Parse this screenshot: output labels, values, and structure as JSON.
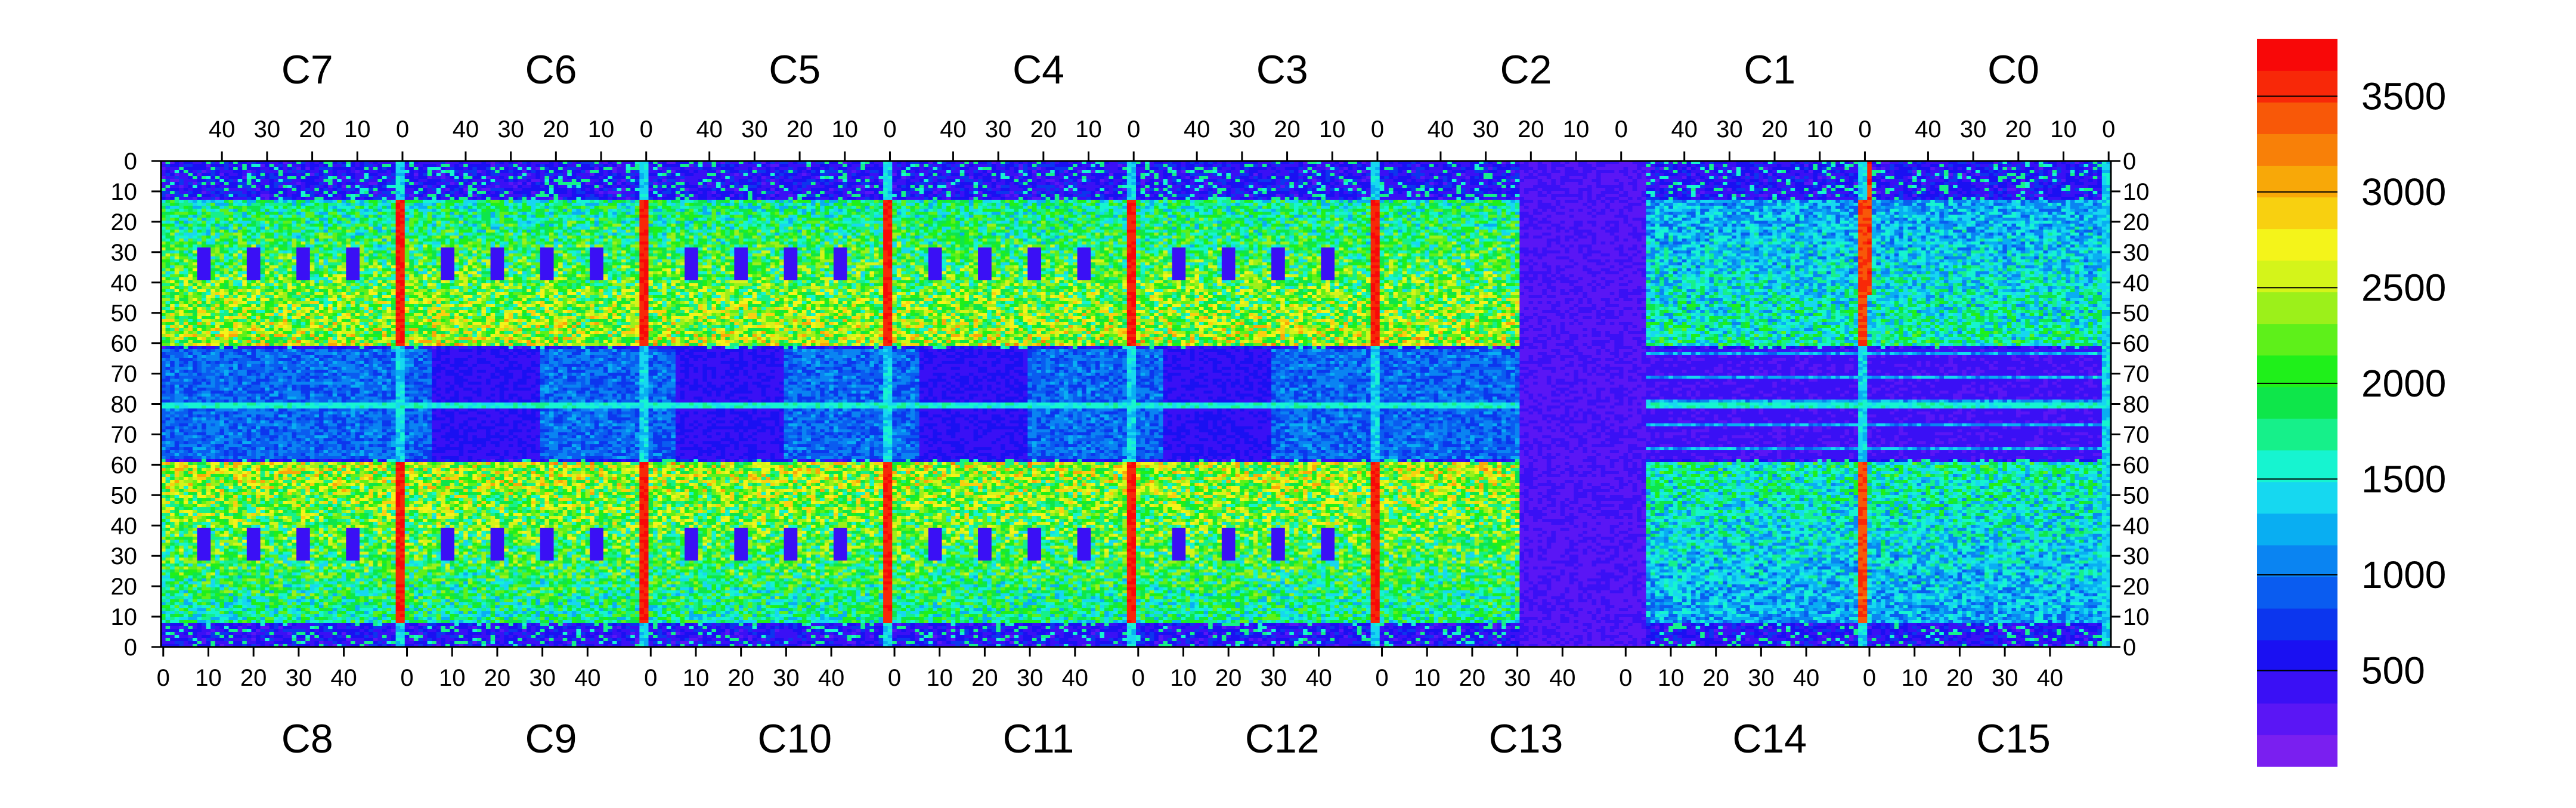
{
  "chart_data": {
    "type": "heatmap",
    "description_free": true,
    "top_section_labels": [
      "C7",
      "C6",
      "C5",
      "C4",
      "C3",
      "C2",
      "C1",
      "C0"
    ],
    "bottom_section_labels": [
      "C8",
      "C9",
      "C10",
      "C11",
      "C12",
      "C13",
      "C14",
      "C15"
    ],
    "top_x_ticks": [
      "40",
      "30",
      "20",
      "10",
      "0"
    ],
    "bottom_x_ticks": [
      "0",
      "10",
      "20",
      "30",
      "40"
    ],
    "y_ticks": [
      "0",
      "10",
      "20",
      "30",
      "40",
      "50",
      "60",
      "70",
      "80",
      "70",
      "60",
      "50",
      "40",
      "30",
      "20",
      "10",
      "0"
    ],
    "columns_per_section": 54,
    "rows": 163,
    "zlim": [
      0,
      3800
    ],
    "colorbar_ticks": [
      500,
      1000,
      1500,
      2000,
      2500,
      3000,
      3500
    ],
    "palette": [
      "#7a1ff0",
      "#5a16f5",
      "#3a10f5",
      "#1a10f2",
      "#0c36ee",
      "#0a5cf0",
      "#0a84f2",
      "#09aef2",
      "#16d8f0",
      "#16f4d0",
      "#16f08a",
      "#0ee64a",
      "#1ff01a",
      "#5ef01a",
      "#9cf01a",
      "#d4f41a",
      "#f4f41a",
      "#f8d010",
      "#f8a808",
      "#f88008",
      "#f85808",
      "#f82808",
      "#f80808"
    ],
    "value_regions": {
      "background": 300,
      "upper_band_rows": [
        12,
        62
      ],
      "lower_band_rows": [
        100,
        155
      ],
      "hot_columns_value": 3500,
      "band_value_range": [
        1200,
        2800
      ],
      "central_row_value": 1400,
      "dark_block_value": 450
    }
  }
}
